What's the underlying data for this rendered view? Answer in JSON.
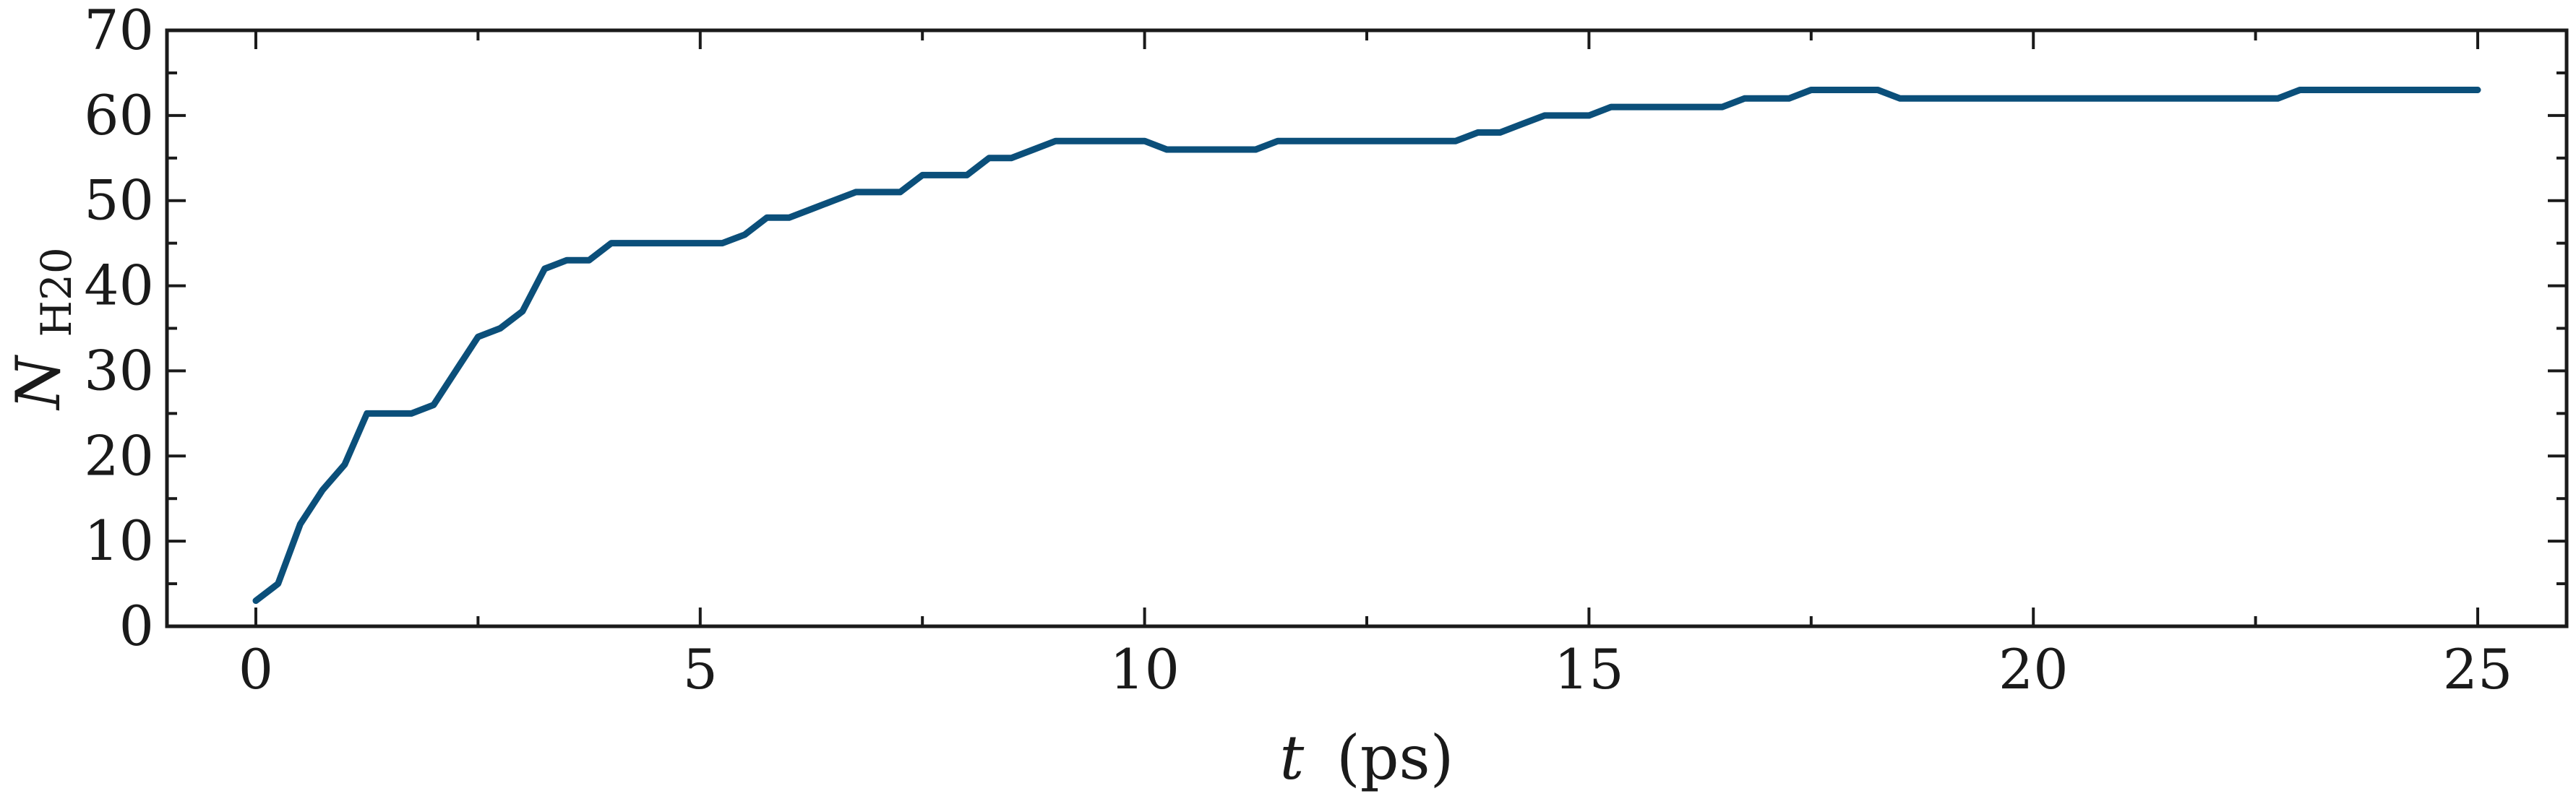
{
  "chart_data": {
    "type": "line",
    "title": "",
    "xlabel": {
      "var": "t",
      "unit": "(ps)"
    },
    "ylabel": {
      "var": "N",
      "sub": "H20"
    },
    "xlim": [
      -1,
      26
    ],
    "ylim": [
      0,
      70
    ],
    "xticks": [
      0,
      5,
      10,
      15,
      20,
      25
    ],
    "yticks": [
      0,
      10,
      20,
      30,
      40,
      50,
      60,
      70
    ],
    "xminor_step": 2.5,
    "yminor_step": 5,
    "grid": false,
    "line_color": "#0b4f7a",
    "series": [
      {
        "x": [
          0,
          0.25,
          0.5,
          0.75,
          1.0,
          1.25,
          1.5,
          1.75,
          2.0,
          2.25,
          2.5,
          2.75,
          3.0,
          3.25,
          3.5,
          3.75,
          4.0,
          4.25,
          4.5,
          4.75,
          5.0,
          5.25,
          5.5,
          5.75,
          6.0,
          6.25,
          6.5,
          6.75,
          7.0,
          7.25,
          7.5,
          7.75,
          8.0,
          8.25,
          8.5,
          8.75,
          9.0,
          9.25,
          9.5,
          9.75,
          10.0,
          10.25,
          10.5,
          10.75,
          11.0,
          11.25,
          11.5,
          11.75,
          12.0,
          12.25,
          12.5,
          12.75,
          13.0,
          13.25,
          13.5,
          13.75,
          14.0,
          14.25,
          14.5,
          14.75,
          15.0,
          15.25,
          15.5,
          15.75,
          16.0,
          16.25,
          16.5,
          16.75,
          17.0,
          17.25,
          17.5,
          17.75,
          18.0,
          18.25,
          18.5,
          18.75,
          19.0,
          19.25,
          19.5,
          19.75,
          20.0,
          20.25,
          20.5,
          20.75,
          21.0,
          21.25,
          21.5,
          21.75,
          22.0,
          22.25,
          22.5,
          22.75,
          23.0,
          23.25,
          23.5,
          23.75,
          24.0,
          24.25,
          24.5,
          24.75,
          25.0
        ],
        "y": [
          3,
          5,
          12,
          16,
          19,
          25,
          25,
          25,
          26,
          30,
          34,
          35,
          37,
          42,
          43,
          43,
          45,
          45,
          45,
          45,
          45,
          45,
          46,
          48,
          48,
          49,
          50,
          51,
          51,
          51,
          53,
          53,
          53,
          55,
          55,
          56,
          57,
          57,
          57,
          57,
          57,
          56,
          56,
          56,
          56,
          56,
          57,
          57,
          57,
          57,
          57,
          57,
          57,
          57,
          57,
          58,
          58,
          59,
          60,
          60,
          60,
          61,
          61,
          61,
          61,
          61,
          61,
          62,
          62,
          62,
          63,
          63,
          63,
          63,
          62,
          62,
          62,
          62,
          62,
          62,
          62,
          62,
          62,
          62,
          62,
          62,
          62,
          62,
          62,
          62,
          62,
          62,
          63,
          63,
          63,
          63,
          63,
          63,
          63,
          63,
          63
        ]
      }
    ]
  }
}
